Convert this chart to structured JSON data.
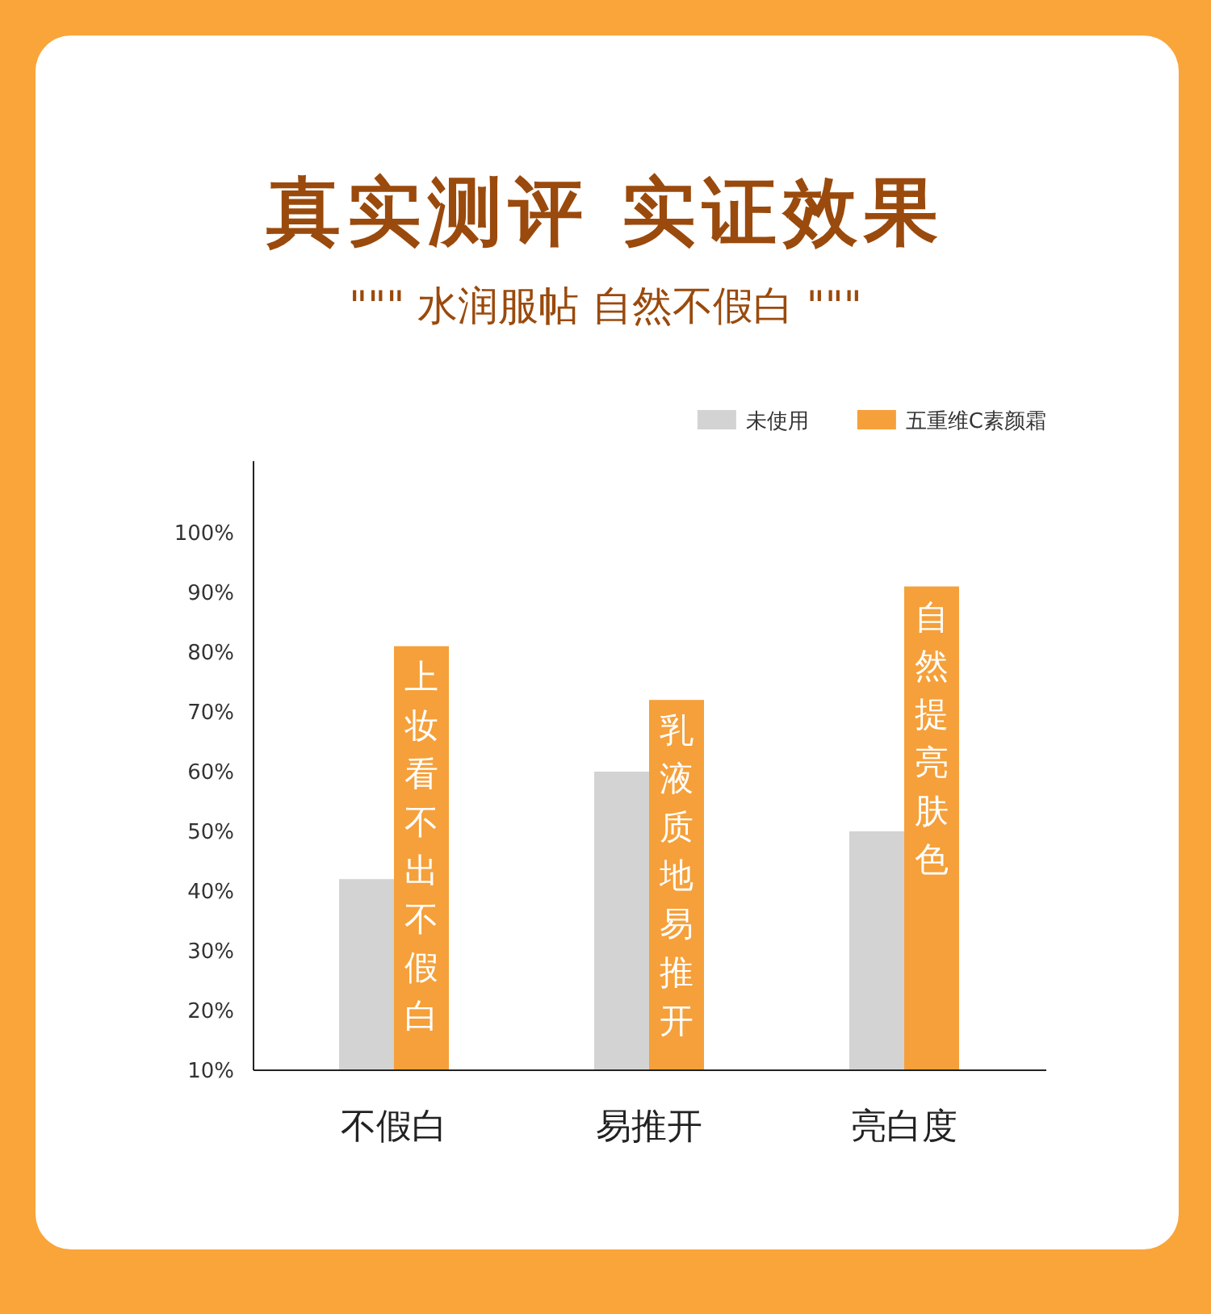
{
  "chart_data": {
    "type": "bar",
    "title": "真实测评 实证效果",
    "subtitle": "\"\"\" 水润服帖 自然不假白 \"\"\"",
    "categories": [
      "不假白",
      "易推开",
      "亮白度"
    ],
    "series": [
      {
        "name": "未使用",
        "color": "#d3d3d3",
        "values": [
          42,
          60,
          50
        ]
      },
      {
        "name": "五重维C素颜霜",
        "color": "#f5a03a",
        "values": [
          81,
          72,
          91
        ]
      }
    ],
    "ylim": [
      10,
      112
    ],
    "yticks": [
      {
        "value": 10,
        "label": "10%"
      },
      {
        "value": 20,
        "label": "20%"
      },
      {
        "value": 30,
        "label": "30%"
      },
      {
        "value": 40,
        "label": "40%"
      },
      {
        "value": 50,
        "label": "50%"
      },
      {
        "value": 60,
        "label": "60%"
      },
      {
        "value": 70,
        "label": "70%"
      },
      {
        "value": 80,
        "label": "80%"
      },
      {
        "value": 90,
        "label": "90%"
      },
      {
        "value": 100,
        "label": "100%"
      }
    ],
    "legend": "top right",
    "grid": false,
    "annotations": [
      {
        "text": "上妆看不出不假白",
        "x": "不假白",
        "y": 81
      },
      {
        "text": "乳液质地易推开",
        "x": "易推开",
        "y": 72
      },
      {
        "text": "自然提亮肤色",
        "x": "亮白度",
        "y": 91
      }
    ]
  }
}
